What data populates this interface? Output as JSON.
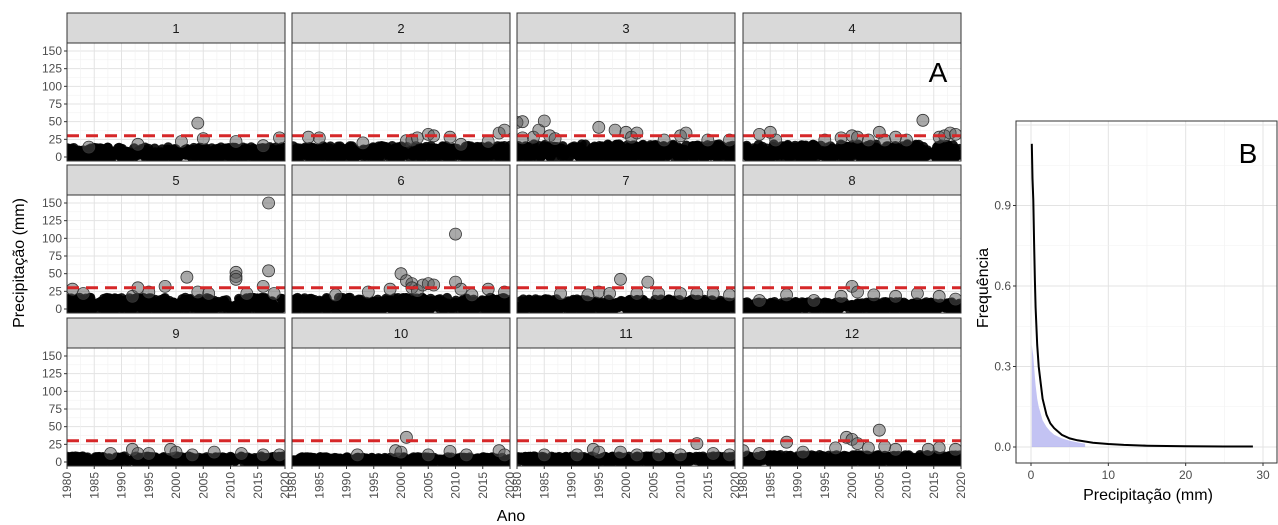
{
  "chart_data": [
    {
      "type": "scatter",
      "panel_letter": "A",
      "facet_titles": [
        "1",
        "2",
        "3",
        "4",
        "5",
        "6",
        "7",
        "8",
        "9",
        "10",
        "11",
        "12"
      ],
      "xlabel": "Ano",
      "ylabel": "Precipitação (mm)",
      "xlim": [
        1980,
        2020
      ],
      "ylim": [
        0,
        150
      ],
      "xticks": [
        "1980",
        "1985",
        "1990",
        "1995",
        "2000",
        "2005",
        "2010",
        "2015",
        "2020"
      ],
      "yticks": [
        "0",
        "25",
        "50",
        "75",
        "100",
        "125",
        "150"
      ],
      "threshold_mm": 30,
      "threshold_color": "#d62728",
      "point_color": "#000000",
      "grid": true,
      "facets": [
        {
          "month": "1",
          "base_max": 14,
          "outliers": [
            [
              1984,
              14
            ],
            [
              1993,
              18
            ],
            [
              2001,
              22
            ],
            [
              2004,
              48
            ],
            [
              2005,
              26
            ],
            [
              2011,
              22
            ],
            [
              2016,
              16
            ],
            [
              2019,
              27
            ]
          ]
        },
        {
          "month": "2",
          "base_max": 16,
          "outliers": [
            [
              1983,
              28
            ],
            [
              1985,
              27
            ],
            [
              1993,
              20
            ],
            [
              2001,
              23
            ],
            [
              2002,
              24
            ],
            [
              2003,
              27
            ],
            [
              2005,
              32
            ],
            [
              2006,
              30
            ],
            [
              2009,
              28
            ],
            [
              2011,
              18
            ],
            [
              2016,
              22
            ],
            [
              2018,
              34
            ],
            [
              2019,
              38
            ]
          ]
        },
        {
          "month": "3",
          "base_max": 18,
          "outliers": [
            [
              1980,
              49
            ],
            [
              1981,
              50
            ],
            [
              1981,
              27
            ],
            [
              1983,
              28
            ],
            [
              1984,
              38
            ],
            [
              1985,
              51
            ],
            [
              1986,
              30
            ],
            [
              1987,
              26
            ],
            [
              1995,
              42
            ],
            [
              1998,
              38
            ],
            [
              2000,
              35
            ],
            [
              2001,
              28
            ],
            [
              2002,
              34
            ],
            [
              2007,
              24
            ],
            [
              2010,
              30
            ],
            [
              2011,
              34
            ],
            [
              2015,
              24
            ],
            [
              2019,
              24
            ]
          ]
        },
        {
          "month": "4",
          "base_max": 18,
          "outliers": [
            [
              1983,
              32
            ],
            [
              1985,
              35
            ],
            [
              1986,
              24
            ],
            [
              1995,
              24
            ],
            [
              1998,
              27
            ],
            [
              2000,
              30
            ],
            [
              2001,
              28
            ],
            [
              2003,
              24
            ],
            [
              2005,
              35
            ],
            [
              2006,
              24
            ],
            [
              2008,
              28
            ],
            [
              2010,
              24
            ],
            [
              2013,
              52
            ],
            [
              2016,
              28
            ],
            [
              2017,
              30
            ],
            [
              2018,
              34
            ],
            [
              2019,
              32
            ]
          ]
        },
        {
          "month": "5",
          "base_max": 16,
          "outliers": [
            [
              1981,
              28
            ],
            [
              1983,
              22
            ],
            [
              1992,
              18
            ],
            [
              1993,
              30
            ],
            [
              1995,
              24
            ],
            [
              1998,
              32
            ],
            [
              2002,
              45
            ],
            [
              2004,
              24
            ],
            [
              2006,
              22
            ],
            [
              2011,
              52
            ],
            [
              2011,
              46
            ],
            [
              2011,
              42
            ],
            [
              2013,
              22
            ],
            [
              2016,
              32
            ],
            [
              2017,
              150
            ],
            [
              2017,
              54
            ],
            [
              2018,
              22
            ]
          ]
        },
        {
          "month": "6",
          "base_max": 16,
          "outliers": [
            [
              1988,
              20
            ],
            [
              1994,
              24
            ],
            [
              1998,
              28
            ],
            [
              2000,
              50
            ],
            [
              2001,
              40
            ],
            [
              2002,
              36
            ],
            [
              2002,
              30
            ],
            [
              2003,
              26
            ],
            [
              2004,
              34
            ],
            [
              2005,
              36
            ],
            [
              2006,
              34
            ],
            [
              2010,
              106
            ],
            [
              2010,
              38
            ],
            [
              2011,
              28
            ],
            [
              2013,
              20
            ],
            [
              2016,
              28
            ],
            [
              2019,
              24
            ]
          ]
        },
        {
          "month": "7",
          "base_max": 14,
          "outliers": [
            [
              1988,
              22
            ],
            [
              1993,
              20
            ],
            [
              1995,
              24
            ],
            [
              1997,
              22
            ],
            [
              1999,
              42
            ],
            [
              2002,
              22
            ],
            [
              2004,
              38
            ],
            [
              2006,
              22
            ],
            [
              2010,
              22
            ],
            [
              2013,
              22
            ],
            [
              2016,
              22
            ],
            [
              2019,
              20
            ]
          ]
        },
        {
          "month": "8",
          "base_max": 10,
          "outliers": [
            [
              1983,
              12
            ],
            [
              1988,
              20
            ],
            [
              1993,
              12
            ],
            [
              1998,
              18
            ],
            [
              2000,
              32
            ],
            [
              2001,
              24
            ],
            [
              2004,
              20
            ],
            [
              2008,
              18
            ],
            [
              2012,
              22
            ],
            [
              2016,
              18
            ],
            [
              2019,
              14
            ]
          ]
        },
        {
          "month": "9",
          "base_max": 8,
          "outliers": [
            [
              1988,
              12
            ],
            [
              1992,
              18
            ],
            [
              1993,
              12
            ],
            [
              1995,
              12
            ],
            [
              1999,
              18
            ],
            [
              2000,
              14
            ],
            [
              2003,
              10
            ],
            [
              2007,
              14
            ],
            [
              2012,
              12
            ],
            [
              2016,
              10
            ],
            [
              2019,
              10
            ]
          ]
        },
        {
          "month": "10",
          "base_max": 7,
          "outliers": [
            [
              1992,
              10
            ],
            [
              1999,
              16
            ],
            [
              2000,
              14
            ],
            [
              2001,
              35
            ],
            [
              2005,
              10
            ],
            [
              2009,
              15
            ],
            [
              2012,
              10
            ],
            [
              2018,
              16
            ],
            [
              2019,
              10
            ]
          ]
        },
        {
          "month": "11",
          "base_max": 8,
          "outliers": [
            [
              1985,
              10
            ],
            [
              1991,
              10
            ],
            [
              1994,
              18
            ],
            [
              1995,
              14
            ],
            [
              1999,
              14
            ],
            [
              2002,
              10
            ],
            [
              2006,
              10
            ],
            [
              2010,
              10
            ],
            [
              2013,
              26
            ],
            [
              2016,
              12
            ],
            [
              2019,
              10
            ]
          ]
        },
        {
          "month": "12",
          "base_max": 10,
          "outliers": [
            [
              1980,
              16
            ],
            [
              1983,
              12
            ],
            [
              1988,
              28
            ],
            [
              1991,
              14
            ],
            [
              1997,
              20
            ],
            [
              1999,
              35
            ],
            [
              2000,
              32
            ],
            [
              2001,
              26
            ],
            [
              2003,
              20
            ],
            [
              2005,
              45
            ],
            [
              2006,
              22
            ],
            [
              2008,
              18
            ],
            [
              2014,
              18
            ],
            [
              2016,
              20
            ],
            [
              2019,
              18
            ]
          ]
        }
      ]
    },
    {
      "type": "area",
      "panel_letter": "B",
      "xlabel": "Precipitação (mm)",
      "ylabel": "Frequência",
      "xlim": [
        0,
        30
      ],
      "ylim": [
        0,
        1.2
      ],
      "xticks": [
        "0",
        "10",
        "20",
        "30"
      ],
      "yticks": [
        "0.0",
        "0.3",
        "0.6",
        "0.9"
      ],
      "fill_color": "#aaaaee",
      "line_color": "#000000",
      "grid": true,
      "x": [
        0.1,
        0.2,
        0.3,
        0.4,
        0.5,
        0.6,
        0.8,
        1.0,
        1.2,
        1.5,
        2.0,
        2.5,
        3.0,
        4.0,
        5.0,
        6.0,
        8.0,
        10.0,
        12.0,
        15.0,
        20.0,
        25.0,
        28.7
      ],
      "y": [
        1.13,
        1.0,
        0.92,
        0.76,
        0.62,
        0.52,
        0.38,
        0.3,
        0.25,
        0.18,
        0.12,
        0.088,
        0.07,
        0.045,
        0.032,
        0.025,
        0.016,
        0.011,
        0.008,
        0.005,
        0.003,
        0.002,
        0.002
      ],
      "fill_x": [
        0.1,
        0.2,
        0.3,
        0.4,
        0.5,
        0.6,
        0.8,
        1.0,
        1.2,
        1.5,
        2.0,
        2.5,
        3.0,
        4.0,
        5.0,
        6.0,
        7.0
      ],
      "fill_y": [
        0.38,
        0.36,
        0.34,
        0.3,
        0.26,
        0.23,
        0.18,
        0.15,
        0.13,
        0.1,
        0.075,
        0.058,
        0.046,
        0.032,
        0.023,
        0.017,
        0.012
      ]
    }
  ]
}
